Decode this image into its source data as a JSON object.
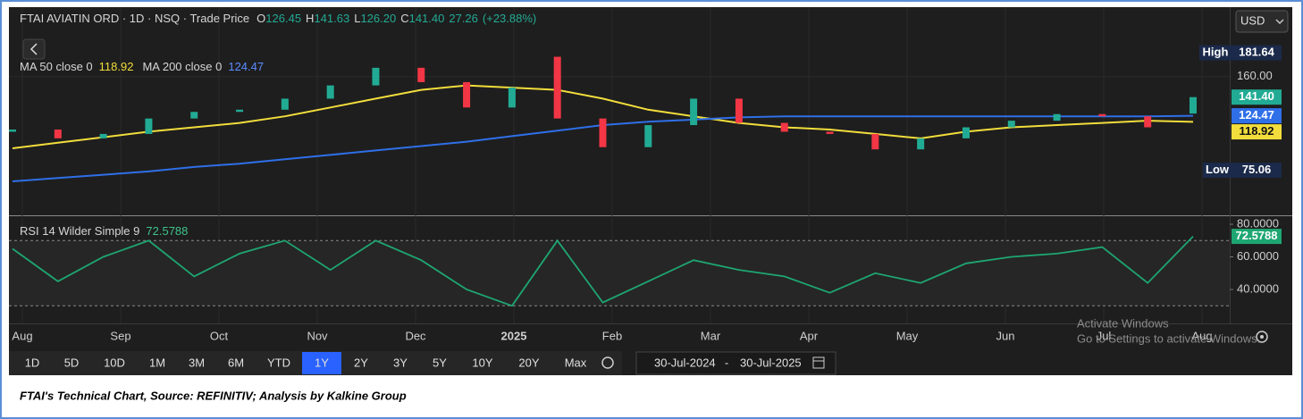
{
  "header": {
    "title": "FTAI AVIATIN ORD · 1D · NSQ · Trade Price",
    "ohlc": [
      {
        "key": "O",
        "value": "126.45"
      },
      {
        "key": "H",
        "value": "141.63"
      },
      {
        "key": "L",
        "value": "126.20"
      },
      {
        "key": "C",
        "value": "141.40"
      }
    ],
    "change": "27.26",
    "change_pct": "(+23.88%)"
  },
  "currency": "USD",
  "time_axis": [
    "Aug",
    "Sep",
    "Oct",
    "Nov",
    "Dec",
    "2025",
    "Feb",
    "Mar",
    "Apr",
    "May",
    "Jun",
    "Jul",
    "Aug"
  ],
  "chart_data": [
    {
      "type": "candlestick",
      "open": [
        110,
        112,
        104,
        108,
        122,
        128,
        130,
        140,
        152,
        168,
        155,
        132,
        178,
        122,
        96,
        116,
        140,
        118,
        110,
        108,
        94,
        104,
        114,
        120,
        126,
        124,
        126.45
      ],
      "close": [
        112,
        104,
        108,
        122,
        128,
        130,
        140,
        152,
        168,
        155,
        132,
        150,
        122,
        96,
        116,
        140,
        118,
        110,
        108,
        94,
        104,
        114,
        120,
        126,
        124,
        114,
        141.4
      ],
      "up_color": "#22ab94",
      "down_color": "#f23645",
      "last_close_label": "141.40",
      "series": [
        {
          "name": "MA 50 close 0",
          "color": "#f2dd3c",
          "value_label": "118.92",
          "values": [
            95,
            100,
            105,
            110,
            114,
            118,
            124,
            132,
            140,
            148,
            152,
            150,
            148,
            140,
            130,
            124,
            118,
            114,
            112,
            108,
            104,
            110,
            114,
            116,
            118,
            120,
            118.92
          ]
        },
        {
          "name": "MA 200 close 0",
          "color": "#2f6fe8",
          "value_label": "124.47",
          "values": [
            65,
            68,
            71,
            74,
            78,
            81,
            85,
            89,
            93,
            97,
            101,
            106,
            111,
            116,
            119,
            121,
            123,
            124,
            124,
            124,
            124,
            124,
            124,
            124,
            124,
            124,
            124.47
          ]
        }
      ],
      "high": {
        "label": "High",
        "value": 181.64
      },
      "low": {
        "label": "Low",
        "value": 75.06
      },
      "ylim": [
        35,
        223
      ],
      "yticks": [
        {
          "value": 160,
          "label": "160.00"
        }
      ]
    },
    {
      "type": "line",
      "series": [
        {
          "name": "RSI 14 Wilder Simple 9",
          "color": "#1ea672",
          "value_label": "72.5788",
          "values": [
            65,
            45,
            60,
            70,
            48,
            62,
            70,
            52,
            70,
            58,
            40,
            30,
            70,
            32,
            45,
            58,
            52,
            48,
            38,
            50,
            44,
            56,
            60,
            62,
            66,
            44,
            72.5788
          ]
        }
      ],
      "bands": [
        70,
        30
      ],
      "ylim": [
        20.3,
        84.4
      ],
      "yticks": [
        {
          "value": 80,
          "label": "80.0000"
        },
        {
          "value": 60,
          "label": "60.0000"
        },
        {
          "value": 40,
          "label": "40.0000"
        }
      ]
    }
  ],
  "toolbar": {
    "ranges": [
      "1D",
      "5D",
      "10D",
      "1M",
      "3M",
      "6M",
      "YTD",
      "1Y",
      "2Y",
      "3Y",
      "5Y",
      "10Y",
      "20Y",
      "Max"
    ],
    "active": "1Y",
    "date_from": "30-Jul-2024",
    "date_separator": "-",
    "date_to": "30-Jul-2025"
  },
  "watermark": {
    "title": "Activate Windows",
    "text": "Go to Settings to activate Windows."
  },
  "caption": "FTAI's Technical Chart, Source: REFINITIV; Analysis by Kalkine Group"
}
